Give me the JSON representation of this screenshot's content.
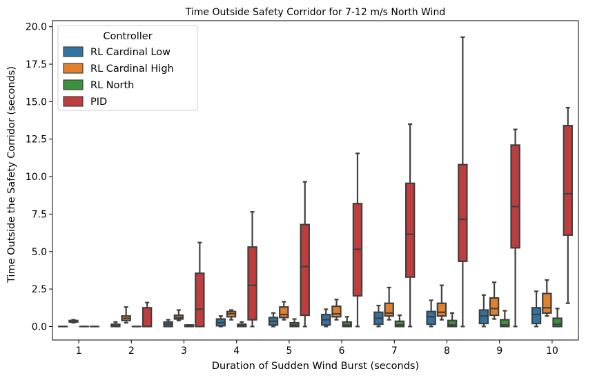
{
  "chart_data": {
    "type": "box",
    "title": "Time Outside Safety Corridor for 7-12 m/s North Wind",
    "xlabel": "Duration of Sudden Wind Burst (seconds)",
    "ylabel": "Time Outside the Safety Corridor (seconds)",
    "ylim": [
      -0.9,
      20.4
    ],
    "yticks": [
      "0.0",
      "2.5",
      "5.0",
      "7.5",
      "10.0",
      "12.5",
      "15.0",
      "17.5",
      "20.0"
    ],
    "categories": [
      "1",
      "2",
      "3",
      "4",
      "5",
      "6",
      "7",
      "8",
      "9",
      "10"
    ],
    "grid": false,
    "legend": {
      "title": "Controller",
      "position": "top-left"
    },
    "series": [
      {
        "name": "RL Cardinal Low",
        "color": "#3274a1",
        "boxes": [
          {
            "whislo": 0.0,
            "q1": 0.0,
            "med": 0.0,
            "q3": 0.0,
            "whishi": 0.0
          },
          {
            "whislo": 0.0,
            "q1": 0.0,
            "med": 0.05,
            "q3": 0.15,
            "whishi": 0.3
          },
          {
            "whislo": 0.0,
            "q1": 0.0,
            "med": 0.15,
            "q3": 0.3,
            "whishi": 0.45
          },
          {
            "whislo": 0.0,
            "q1": 0.05,
            "med": 0.25,
            "q3": 0.5,
            "whishi": 0.7
          },
          {
            "whislo": 0.0,
            "q1": 0.1,
            "med": 0.35,
            "q3": 0.6,
            "whishi": 0.9
          },
          {
            "whislo": 0.0,
            "q1": 0.1,
            "med": 0.45,
            "q3": 0.8,
            "whishi": 1.15
          },
          {
            "whislo": 0.0,
            "q1": 0.15,
            "med": 0.55,
            "q3": 0.95,
            "whishi": 1.4
          },
          {
            "whislo": 0.0,
            "q1": 0.15,
            "med": 0.65,
            "q3": 1.0,
            "whishi": 1.75
          },
          {
            "whislo": 0.0,
            "q1": 0.2,
            "med": 0.7,
            "q3": 1.1,
            "whishi": 2.1
          },
          {
            "whislo": 0.0,
            "q1": 0.2,
            "med": 0.8,
            "q3": 1.25,
            "whishi": 2.35
          }
        ]
      },
      {
        "name": "RL Cardinal High",
        "color": "#e1812c",
        "boxes": [
          {
            "whislo": 0.25,
            "q1": 0.3,
            "med": 0.35,
            "q3": 0.4,
            "whishi": 0.45
          },
          {
            "whislo": 0.25,
            "q1": 0.4,
            "med": 0.55,
            "q3": 0.7,
            "whishi": 1.3
          },
          {
            "whislo": 0.4,
            "q1": 0.5,
            "med": 0.6,
            "q3": 0.75,
            "whishi": 1.1
          },
          {
            "whislo": 0.45,
            "q1": 0.65,
            "med": 0.85,
            "q3": 1.0,
            "whishi": 1.1
          },
          {
            "whislo": 0.45,
            "q1": 0.6,
            "med": 0.8,
            "q3": 1.3,
            "whishi": 1.65
          },
          {
            "whislo": 0.45,
            "q1": 0.65,
            "med": 0.85,
            "q3": 1.35,
            "whishi": 1.8
          },
          {
            "whislo": 0.45,
            "q1": 0.7,
            "med": 0.9,
            "q3": 1.55,
            "whishi": 2.6
          },
          {
            "whislo": 0.45,
            "q1": 0.7,
            "med": 0.95,
            "q3": 1.55,
            "whishi": 2.75
          },
          {
            "whislo": 0.5,
            "q1": 0.75,
            "med": 1.2,
            "q3": 1.9,
            "whishi": 2.95
          },
          {
            "whislo": 0.7,
            "q1": 0.9,
            "med": 1.25,
            "q3": 2.2,
            "whishi": 3.1
          }
        ]
      },
      {
        "name": "RL North",
        "color": "#3a923a",
        "boxes": [
          {
            "whislo": 0.0,
            "q1": 0.0,
            "med": 0.0,
            "q3": 0.0,
            "whishi": 0.0
          },
          {
            "whislo": 0.0,
            "q1": 0.0,
            "med": 0.0,
            "q3": 0.0,
            "whishi": 0.0
          },
          {
            "whislo": 0.0,
            "q1": 0.0,
            "med": 0.05,
            "q3": 0.1,
            "whishi": 0.1
          },
          {
            "whislo": 0.0,
            "q1": 0.0,
            "med": 0.1,
            "q3": 0.15,
            "whishi": 0.3
          },
          {
            "whislo": 0.0,
            "q1": 0.0,
            "med": 0.1,
            "q3": 0.25,
            "whishi": 0.5
          },
          {
            "whislo": 0.0,
            "q1": 0.0,
            "med": 0.1,
            "q3": 0.3,
            "whishi": 0.65
          },
          {
            "whislo": 0.0,
            "q1": 0.0,
            "med": 0.1,
            "q3": 0.35,
            "whishi": 0.75
          },
          {
            "whislo": 0.0,
            "q1": 0.0,
            "med": 0.1,
            "q3": 0.4,
            "whishi": 0.9
          },
          {
            "whislo": 0.0,
            "q1": 0.0,
            "med": 0.1,
            "q3": 0.45,
            "whishi": 1.05
          },
          {
            "whislo": 0.0,
            "q1": 0.0,
            "med": 0.15,
            "q3": 0.55,
            "whishi": 1.2
          }
        ]
      },
      {
        "name": "PID",
        "color": "#c03d3e",
        "boxes": [
          {
            "whislo": 0.0,
            "q1": 0.0,
            "med": 0.0,
            "q3": 0.0,
            "whishi": 0.0
          },
          {
            "whislo": 0.0,
            "q1": 0.0,
            "med": 0.0,
            "q3": 1.25,
            "whishi": 1.6
          },
          {
            "whislo": 0.0,
            "q1": 0.0,
            "med": 1.15,
            "q3": 3.55,
            "whishi": 5.6
          },
          {
            "whislo": 0.0,
            "q1": 0.45,
            "med": 2.75,
            "q3": 5.3,
            "whishi": 7.65
          },
          {
            "whislo": 0.0,
            "q1": 0.75,
            "med": 4.0,
            "q3": 6.8,
            "whishi": 9.65
          },
          {
            "whislo": 0.0,
            "q1": 2.05,
            "med": 5.15,
            "q3": 8.2,
            "whishi": 11.55
          },
          {
            "whislo": 0.0,
            "q1": 3.3,
            "med": 6.15,
            "q3": 9.55,
            "whishi": 13.5
          },
          {
            "whislo": 0.0,
            "q1": 4.35,
            "med": 7.15,
            "q3": 10.8,
            "whishi": 19.3
          },
          {
            "whislo": 0.0,
            "q1": 5.25,
            "med": 8.0,
            "q3": 12.1,
            "whishi": 13.15
          },
          {
            "whislo": 1.55,
            "q1": 6.1,
            "med": 8.85,
            "q3": 13.4,
            "whishi": 14.6
          }
        ]
      }
    ]
  }
}
